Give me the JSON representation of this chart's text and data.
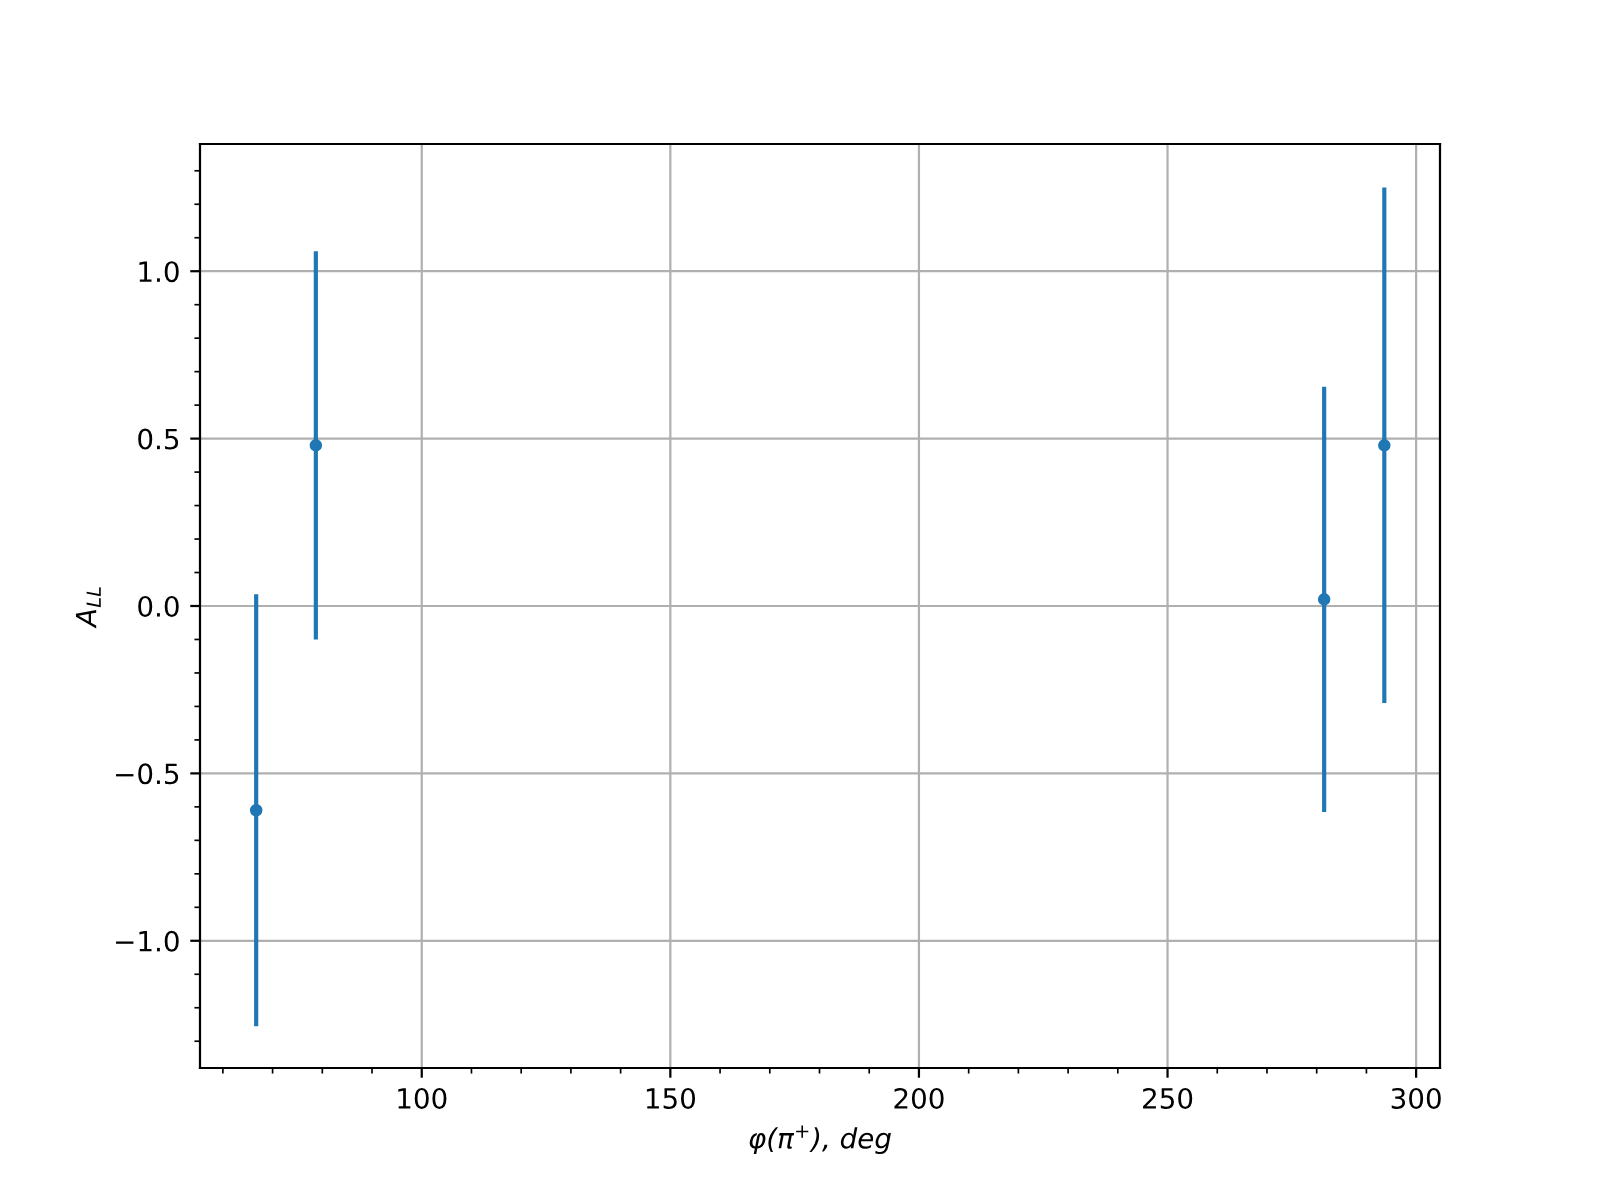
{
  "chart_data": {
    "type": "scatter",
    "xlabel": "φ(π$^{+}$), deg",
    "ylabel": "A$_{LL}$",
    "x": [
      66.7,
      78.7,
      281.5,
      293.6
    ],
    "series": [
      {
        "color": "#1f77b4",
        "values": [
          -0.61,
          0.48,
          0.02,
          0.48
        ],
        "errors": [
          0.645,
          0.58,
          0.635,
          0.77
        ]
      }
    ],
    "xlim": [
      55.4,
      304.8
    ],
    "ylim": [
      -1.38,
      1.38
    ],
    "xticks": [
      100,
      150,
      200,
      250,
      300
    ],
    "yticks": [
      {
        "value": -1.0,
        "label": "−1.0"
      },
      {
        "value": -0.5,
        "label": "−0.5"
      },
      {
        "value": 0.0,
        "label": "0.0"
      },
      {
        "value": 0.5,
        "label": "0.5"
      },
      {
        "value": 1.0,
        "label": "1.0"
      }
    ],
    "grid": true,
    "marker": "circle"
  }
}
